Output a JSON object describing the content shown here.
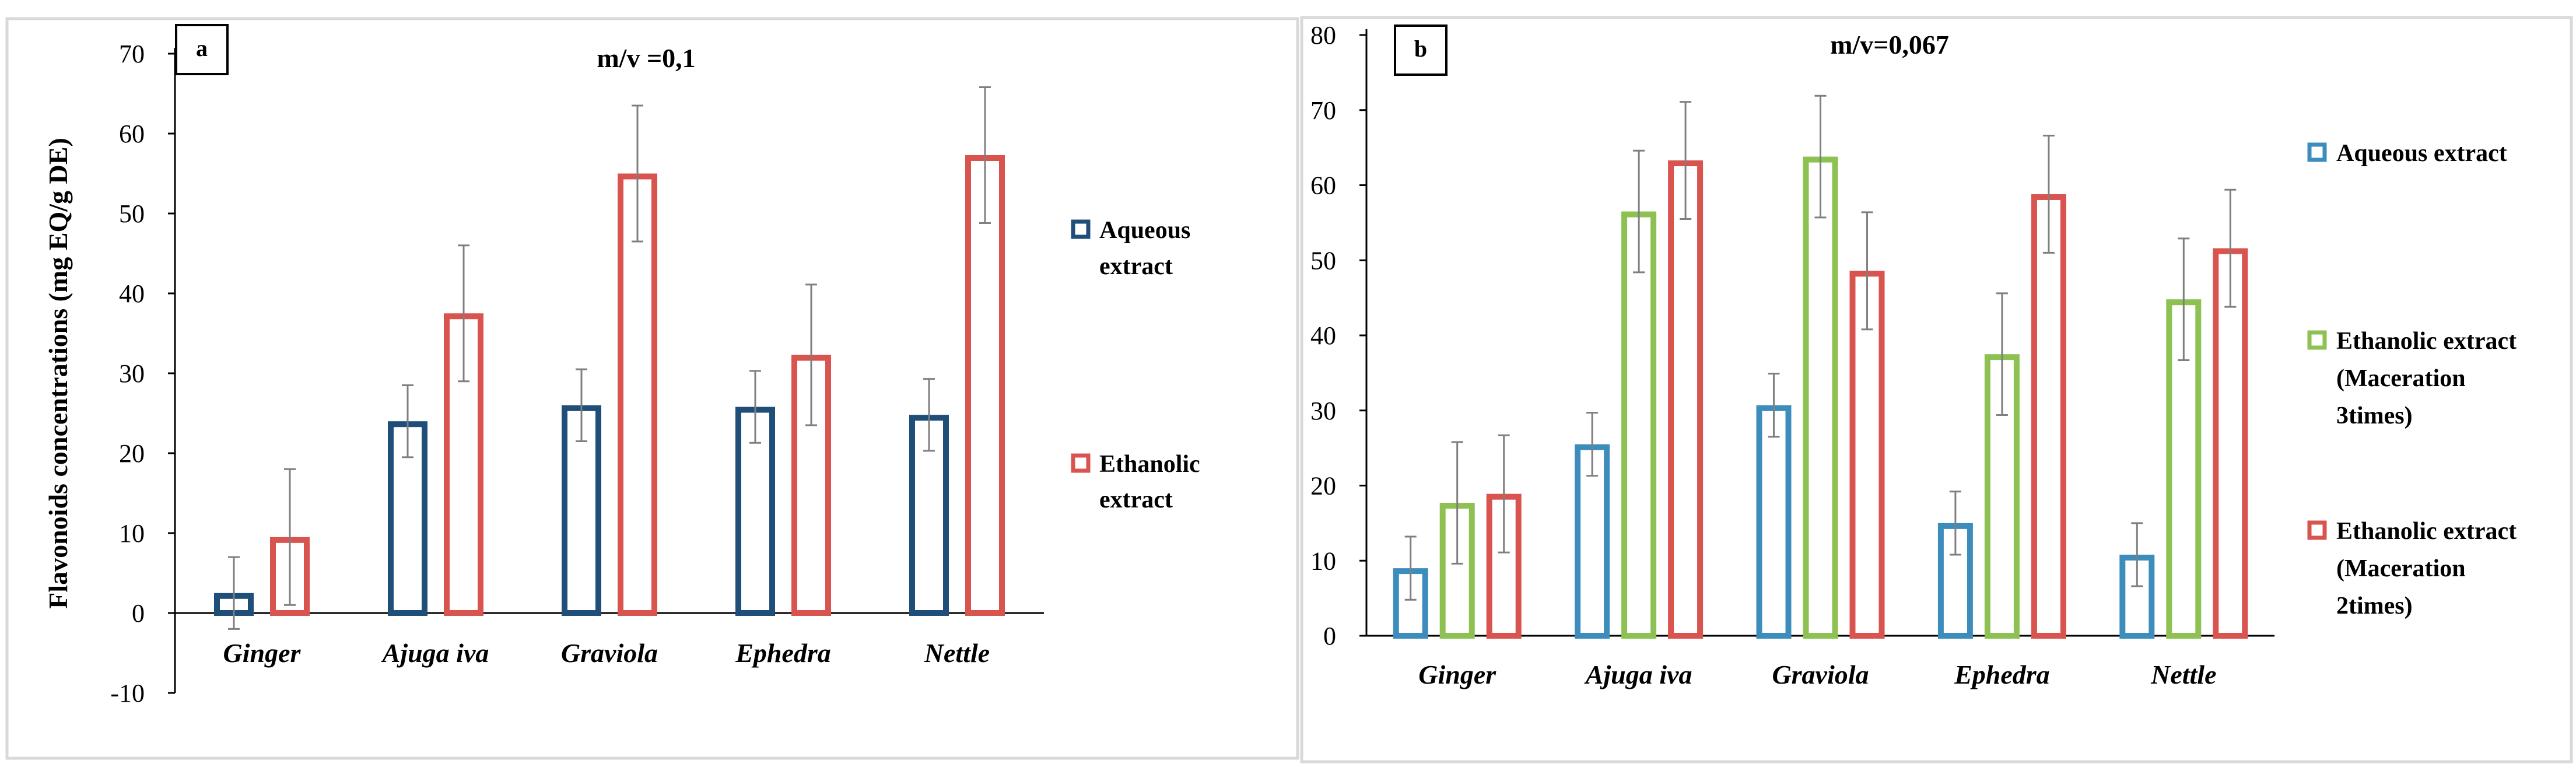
{
  "chart_data": [
    {
      "type": "bar",
      "panel_label": "a",
      "title": "m/v =0,1",
      "ylabel": "Flavonoids concentrations (mg EQ/g DE)",
      "xlabel": "",
      "ylim": [
        -10,
        70
      ],
      "yticks": [
        -10,
        0,
        10,
        20,
        30,
        40,
        50,
        60,
        70
      ],
      "grid": false,
      "legend_position": "right",
      "categories": [
        "Ginger",
        "Ajuga iva",
        "Graviola",
        "Ephedra",
        "Nettle"
      ],
      "series": [
        {
          "name": "Aqueous extract",
          "legend_lines": [
            "Aqueous",
            "extract"
          ],
          "color": "#1f4e79",
          "values": [
            2.5,
            24,
            26,
            25.8,
            24.8
          ],
          "errors": [
            4.5,
            4.5,
            4.5,
            4.5,
            4.5
          ]
        },
        {
          "name": "Ethanolic extract",
          "legend_lines": [
            "Ethanolic",
            "extract"
          ],
          "color": "#d9534f",
          "values": [
            9.5,
            37.5,
            55,
            32.3,
            57.3
          ],
          "errors": [
            8.5,
            8.5,
            8.5,
            8.8,
            8.5
          ]
        }
      ]
    },
    {
      "type": "bar",
      "panel_label": "b",
      "title": "m/v=0,067",
      "ylabel": "",
      "xlabel": "",
      "ylim": [
        0,
        80
      ],
      "yticks": [
        0,
        10,
        20,
        30,
        40,
        50,
        60,
        70,
        80
      ],
      "grid": false,
      "legend_position": "right",
      "categories": [
        "Ginger",
        "Ajuga iva",
        "Graviola",
        "Ephedra",
        "Nettle"
      ],
      "series": [
        {
          "name": "Aqueous extract",
          "legend_lines": [
            "Aqueous extract"
          ],
          "color": "#3c8dbc",
          "values": [
            9,
            25.5,
            30.7,
            15,
            10.8
          ],
          "errors": [
            4.2,
            4.2,
            4.2,
            4.2,
            4.2
          ]
        },
        {
          "name": "Ethanolic extract (Maceration 3times)",
          "legend_lines": [
            "Ethanolic extract",
            "(Maceration",
            "3times)"
          ],
          "color": "#8dc152",
          "values": [
            17.7,
            56.5,
            63.8,
            37.5,
            44.8
          ],
          "errors": [
            8.1,
            8.1,
            8.1,
            8.1,
            8.1
          ]
        },
        {
          "name": "Ethanolic extract (Maceration 2times)",
          "legend_lines": [
            "Ethanolic extract",
            "(Maceration",
            "2times)"
          ],
          "color": "#d9534f",
          "values": [
            18.9,
            63.3,
            48.6,
            58.8,
            51.6
          ],
          "errors": [
            7.8,
            7.8,
            7.8,
            7.8,
            7.8
          ]
        }
      ]
    }
  ]
}
